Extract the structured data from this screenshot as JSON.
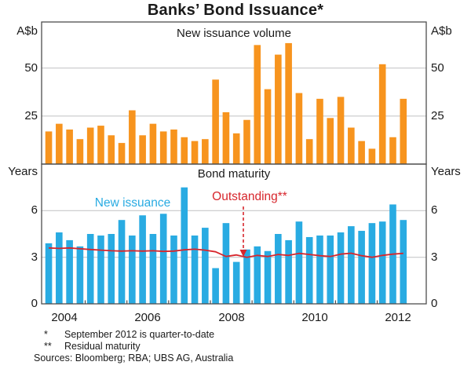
{
  "title": "Banks’ Bond Issuance*",
  "colors": {
    "orange_bars": "#F7941E",
    "blue_bars": "#29ABE2",
    "red_line": "#D7262C",
    "frame": "#4D4D4D",
    "grid": "#C7C8CA"
  },
  "top_panel": {
    "label": "New issuance volume",
    "unit_left": "A$b",
    "unit_right": "A$b",
    "ytick_labels": [
      "50",
      "25"
    ]
  },
  "bottom_panel": {
    "label": "Bond maturity",
    "unit_left": "Years",
    "unit_right": "Years",
    "ytick_labels": [
      "6",
      "3",
      "0"
    ],
    "bar_series_label": "New issuance",
    "line_series_label": "Outstanding**"
  },
  "x_axis": {
    "year_labels": [
      "2004",
      "2006",
      "2008",
      "2010",
      "2012"
    ],
    "start_quarter": "2004Q1",
    "end_quarter": "2012Q3",
    "frequency": "quarterly"
  },
  "chart_data": [
    {
      "type": "bar",
      "title": "New issuance volume",
      "ylabel": "A$b",
      "ylim": [
        0,
        74
      ],
      "yticks": [
        25,
        50
      ],
      "grid": true,
      "x_start": "2004Q1",
      "values": [
        17,
        21,
        18,
        13,
        19,
        20,
        15,
        11,
        28,
        15,
        21,
        17,
        18,
        14,
        12,
        13,
        44,
        27,
        16,
        23,
        62,
        39,
        57,
        63,
        37,
        13,
        34,
        24,
        35,
        19,
        12,
        8,
        52,
        14,
        34
      ]
    },
    {
      "type": "bar+line",
      "title": "Bond maturity",
      "ylabel": "Years",
      "ylim": [
        0,
        9
      ],
      "yticks": [
        3,
        6
      ],
      "grid": true,
      "x_start": "2004Q1",
      "series": [
        {
          "name": "New issuance",
          "type": "bar",
          "values": [
            3.9,
            4.6,
            4.1,
            3.7,
            4.5,
            4.4,
            4.5,
            5.4,
            4.4,
            5.7,
            4.5,
            5.8,
            4.4,
            7.5,
            4.4,
            4.9,
            2.3,
            5.2,
            2.7,
            3.5,
            3.7,
            3.4,
            4.5,
            4.1,
            5.3,
            4.3,
            4.4,
            4.4,
            4.6,
            5.0,
            4.7,
            5.2,
            5.3,
            6.4,
            5.4
          ]
        },
        {
          "name": "Outstanding**",
          "type": "line",
          "values": [
            3.6,
            3.57,
            3.6,
            3.55,
            3.5,
            3.46,
            3.42,
            3.4,
            3.42,
            3.4,
            3.42,
            3.38,
            3.4,
            3.48,
            3.52,
            3.46,
            3.35,
            3.05,
            3.15,
            3.0,
            3.12,
            3.05,
            3.18,
            3.12,
            3.25,
            3.18,
            3.1,
            3.05,
            3.2,
            3.26,
            3.1,
            3.0,
            3.12,
            3.2,
            3.25
          ]
        }
      ]
    }
  ],
  "footnotes": [
    {
      "marker": "*",
      "text": "September 2012 is quarter-to-date"
    },
    {
      "marker": "**",
      "text": "Residual maturity"
    }
  ],
  "sources": "Sources: Bloomberg; RBA; UBS AG, Australia"
}
